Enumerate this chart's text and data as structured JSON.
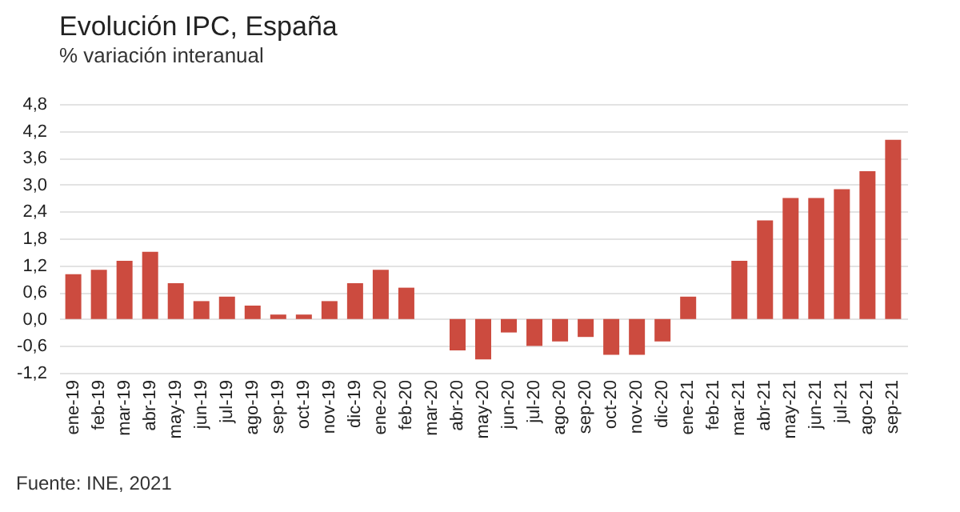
{
  "chart_data": {
    "type": "bar",
    "title": "Evolución IPC, España",
    "subtitle": "% variación interanual",
    "categories": [
      "ene-19",
      "feb-19",
      "mar-19",
      "abr-19",
      "may-19",
      "jun-19",
      "jul-19",
      "ago-19",
      "sep-19",
      "oct-19",
      "nov-19",
      "dic-19",
      "ene-20",
      "feb-20",
      "mar-20",
      "abr-20",
      "may-20",
      "jun-20",
      "jul-20",
      "ago-20",
      "sep-20",
      "oct-20",
      "nov-20",
      "dic-20",
      "ene-21",
      "feb-21",
      "mar-21",
      "abr-21",
      "may-21",
      "jun-21",
      "jul-21",
      "ago-21",
      "sep-21"
    ],
    "values": [
      1.0,
      1.1,
      1.3,
      1.5,
      0.8,
      0.4,
      0.5,
      0.3,
      0.1,
      0.1,
      0.4,
      0.8,
      1.1,
      0.7,
      0.0,
      -0.7,
      -0.9,
      -0.3,
      -0.6,
      -0.5,
      -0.4,
      -0.8,
      -0.8,
      -0.5,
      0.5,
      0.0,
      1.3,
      2.2,
      2.7,
      2.7,
      2.9,
      3.3,
      4.0
    ],
    "color": "#cc4b3f",
    "ylim": [
      -1.2,
      4.8
    ],
    "yticks": [
      {
        "value": -1.2,
        "label": "-1,2"
      },
      {
        "value": -0.6,
        "label": "-0,6"
      },
      {
        "value": 0,
        "label": "0,0"
      },
      {
        "value": 0.6,
        "label": "0,6"
      },
      {
        "value": 1.2,
        "label": "1,2"
      },
      {
        "value": 1.8,
        "label": "1,8"
      },
      {
        "value": 2.4,
        "label": "2,4"
      },
      {
        "value": 3.0,
        "label": "3,0"
      },
      {
        "value": 3.6,
        "label": "3,6"
      },
      {
        "value": 4.2,
        "label": "4,2"
      },
      {
        "value": 4.8,
        "label": "4,8"
      }
    ],
    "grid": "y",
    "annotations": [
      "Fuente: INE, 2021"
    ]
  }
}
